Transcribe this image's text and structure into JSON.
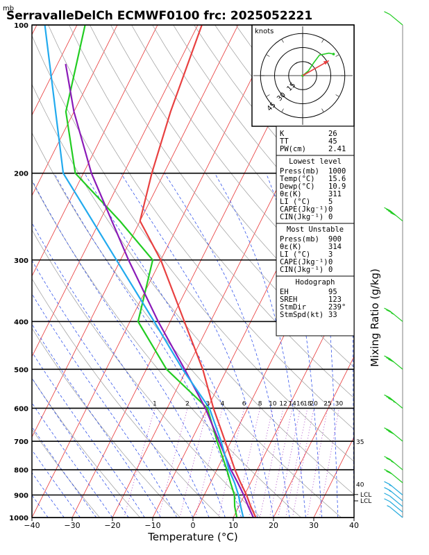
{
  "header": {
    "unit_mb": "mb",
    "title": "SerravalleDelCh  ECMWF0100  frc: 2025052221"
  },
  "colors": {
    "temperature": "#e84040",
    "dewpoint": "#22cc22",
    "parcel": "#8a1ab8",
    "wetbulb": "#22aaee",
    "isotherm": "#e83030",
    "dry_adiabat": "#9a9a9a",
    "moist_adiabat": "#1a3ee8",
    "mixing_ratio": "#a030c0",
    "wind_barb": "#22cc22",
    "wind_barb_low": "#22aadd"
  },
  "chart_data": {
    "type": "skew-t log-p sounding",
    "xlabel": "Temperature (°C)",
    "ylabel": "",
    "right_axis_label": "Mixing Ratio (g/kg)",
    "x_ticks": [
      "−40",
      "−30",
      "−20",
      "−10",
      "0",
      "10",
      "20",
      "30",
      "40"
    ],
    "x_tick_values": [
      -40,
      -30,
      -20,
      -10,
      0,
      10,
      20,
      30,
      40
    ],
    "xlim": [
      -40,
      40
    ],
    "pressure_ticks": [
      "100",
      "200",
      "300",
      "400",
      "500",
      "600",
      "700",
      "800",
      "900",
      "1000"
    ],
    "pressure_tick_values": [
      100,
      200,
      300,
      400,
      500,
      600,
      700,
      800,
      900,
      1000
    ],
    "ylim_hpa": [
      1000,
      100
    ],
    "y_scale": "log",
    "mixing_ratio_labels": [
      "1",
      "2",
      "3",
      "4",
      "6",
      "8",
      "10",
      "12",
      "14",
      "16",
      "18",
      "20",
      "25",
      "30"
    ],
    "mixing_ratio_values": [
      1,
      2,
      3,
      4,
      6,
      8,
      10,
      12,
      14,
      16,
      18,
      20,
      25,
      30
    ],
    "theta_e_labels": [
      {
        "text": "35",
        "p": 700
      },
      {
        "text": "40",
        "p": 855
      }
    ],
    "lcl_labels": [
      "LCL",
      "LCL"
    ],
    "lcl_pressures": [
      898,
      925
    ],
    "series": [
      {
        "name": "temperature",
        "points": [
          [
            1000,
            15.6
          ],
          [
            950,
            13.0
          ],
          [
            900,
            10.5
          ],
          [
            850,
            7.5
          ],
          [
            800,
            4.5
          ],
          [
            700,
            -1.5
          ],
          [
            600,
            -8.5
          ],
          [
            500,
            -16.0
          ],
          [
            400,
            -26.5
          ],
          [
            300,
            -40.0
          ],
          [
            250,
            -50.0
          ],
          [
            200,
            -53.0
          ],
          [
            150,
            -56.0
          ],
          [
            100,
            -59.0
          ]
        ]
      },
      {
        "name": "dewpoint",
        "points": [
          [
            1000,
            10.9
          ],
          [
            950,
            9.0
          ],
          [
            900,
            7.5
          ],
          [
            850,
            5.0
          ],
          [
            800,
            2.5
          ],
          [
            700,
            -3.5
          ],
          [
            600,
            -10.0
          ],
          [
            500,
            -25.0
          ],
          [
            400,
            -38.0
          ],
          [
            300,
            -42.0
          ],
          [
            250,
            -55.0
          ],
          [
            200,
            -72.0
          ],
          [
            150,
            -82.0
          ],
          [
            100,
            -88.0
          ]
        ]
      },
      {
        "name": "parcel",
        "points": [
          [
            1000,
            15.0
          ],
          [
            950,
            12.4
          ],
          [
            900,
            9.8
          ],
          [
            850,
            6.8
          ],
          [
            800,
            3.5
          ],
          [
            700,
            -3.0
          ],
          [
            600,
            -10.5
          ],
          [
            500,
            -20.5
          ],
          [
            400,
            -33.0
          ],
          [
            300,
            -48.0
          ],
          [
            200,
            -68.0
          ],
          [
            150,
            -80.0
          ],
          [
            120,
            -88.0
          ]
        ]
      },
      {
        "name": "wetbulb",
        "points": [
          [
            1000,
            12.5
          ],
          [
            950,
            10.5
          ],
          [
            900,
            8.5
          ],
          [
            850,
            6.0
          ],
          [
            800,
            3.0
          ],
          [
            700,
            -2.5
          ],
          [
            600,
            -9.5
          ],
          [
            500,
            -21.0
          ],
          [
            400,
            -34.0
          ],
          [
            300,
            -51.0
          ],
          [
            200,
            -75.0
          ],
          [
            100,
            -98.0
          ]
        ]
      }
    ],
    "wind_barbs": [
      {
        "p": 100,
        "spd": 10
      },
      {
        "p": 250,
        "spd": 40
      },
      {
        "p": 400,
        "spd": 25
      },
      {
        "p": 500,
        "spd": 30
      },
      {
        "p": 600,
        "spd": 35
      },
      {
        "p": 700,
        "spd": 30
      },
      {
        "p": 800,
        "spd": 25
      },
      {
        "p": 850,
        "spd": 20
      },
      {
        "p": 900,
        "spd": 15
      },
      {
        "p": 925,
        "spd": 15
      },
      {
        "p": 950,
        "spd": 10
      },
      {
        "p": 975,
        "spd": 10
      },
      {
        "p": 1000,
        "spd": 5
      }
    ]
  },
  "hodograph": {
    "unit": "knots",
    "ring_labels": [
      "15",
      "30",
      "45"
    ],
    "ring_values": [
      15,
      30,
      45
    ],
    "trace": [
      [
        0,
        0
      ],
      [
        6,
        5
      ],
      [
        12,
        14
      ],
      [
        18,
        22
      ],
      [
        28,
        24
      ],
      [
        33,
        23
      ]
    ],
    "storm_vector": [
      28,
      16
    ]
  },
  "indices": {
    "top": [
      {
        "label": "K",
        "value": "26"
      },
      {
        "label": "TT",
        "value": "45"
      },
      {
        "label": "PW(cm)",
        "value": "2.41"
      }
    ],
    "lowest_title": "Lowest level",
    "lowest": [
      {
        "label": "Press(mb)",
        "value": "1000"
      },
      {
        "label": "Temp(°C)",
        "value": "15.6"
      },
      {
        "label": "Dewp(°C)",
        "value": "10.9"
      },
      {
        "label": "θε(K)",
        "value": "311"
      },
      {
        "label": "LI (°C)",
        "value": "5"
      },
      {
        "label": "CAPE(Jkg⁻¹)",
        "value": "0"
      },
      {
        "label": "CIN(Jkg⁻¹)",
        "value": "0"
      }
    ],
    "unstable_title": "Most Unstable",
    "unstable": [
      {
        "label": "Press(mb)",
        "value": "900"
      },
      {
        "label": "θε(K)",
        "value": "314"
      },
      {
        "label": "LI (°C)",
        "value": "3"
      },
      {
        "label": "CAPE(Jkg⁻¹)",
        "value": "0"
      },
      {
        "label": "CIN(Jkg⁻¹)",
        "value": "0"
      }
    ],
    "hodo_title": "Hodograph",
    "hodo": [
      {
        "label": "EH",
        "value": "95"
      },
      {
        "label": "SREH",
        "value": "123"
      },
      {
        "label": "StmDir",
        "value": "239°"
      },
      {
        "label": "StmSpd(kt)",
        "value": "33"
      }
    ]
  }
}
